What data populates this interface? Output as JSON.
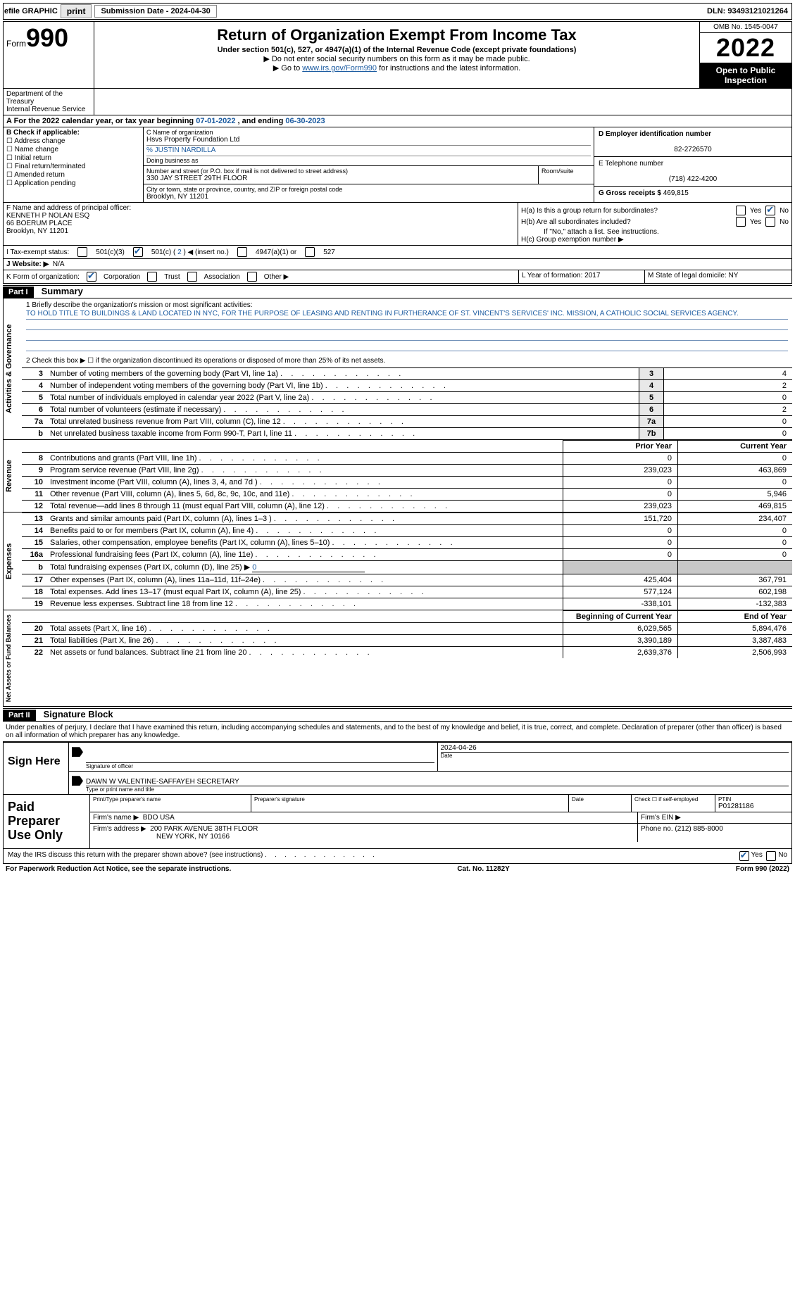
{
  "topbar": {
    "efile_label": "efile GRAPHIC",
    "print_btn": "print",
    "submission_label": "Submission Date - 2024-04-30",
    "dln_label": "DLN: 93493121021264"
  },
  "header": {
    "form_word": "Form",
    "form_number": "990",
    "dept": "Department of the Treasury\nInternal Revenue Service",
    "title": "Return of Organization Exempt From Income Tax",
    "subtitle": "Under section 501(c), 527, or 4947(a)(1) of the Internal Revenue Code (except private foundations)",
    "note1": "▶ Do not enter social security numbers on this form as it may be made public.",
    "note2_pre": "▶ Go to ",
    "note2_link": "www.irs.gov/Form990",
    "note2_post": " for instructions and the latest information.",
    "omb": "OMB No. 1545-0047",
    "year": "2022",
    "open": "Open to Public Inspection"
  },
  "A": {
    "line_pre": "A For the 2022 calendar year, or tax year beginning ",
    "begin": "07-01-2022",
    "mid": " , and ending ",
    "end": "06-30-2023"
  },
  "B": {
    "label": "B Check if applicable:",
    "opts": [
      "Address change",
      "Name change",
      "Initial return",
      "Final return/terminated",
      "Amended return",
      "Application pending"
    ]
  },
  "C": {
    "name_lbl": "C Name of organization",
    "name_val": "Hsvs Property Foundation Ltd",
    "care_lbl": "% JUSTIN NARDILLA",
    "dba_lbl": "Doing business as",
    "street_lbl": "Number and street (or P.O. box if mail is not delivered to street address)",
    "room_lbl": "Room/suite",
    "street_val": "330 JAY STREET 29TH FLOOR",
    "city_lbl": "City or town, state or province, country, and ZIP or foreign postal code",
    "city_val": "Brooklyn, NY  11201"
  },
  "D": {
    "lbl": "D Employer identification number",
    "val": "82-2726570"
  },
  "E": {
    "lbl": "E Telephone number",
    "val": "(718) 422-4200"
  },
  "G": {
    "lbl": "G Gross receipts $ ",
    "val": "469,815"
  },
  "F": {
    "lbl": "F  Name and address of principal officer:",
    "name": "KENNETH P NOLAN ESQ",
    "addr1": "66 BOERUM PLACE",
    "addr2": "Brooklyn, NY  11201"
  },
  "H": {
    "a": "H(a)  Is this a group return for subordinates?",
    "b": "H(b)  Are all subordinates included?",
    "b_note": "If \"No,\" attach a list. See instructions.",
    "c": "H(c)  Group exemption number ▶",
    "yes": "Yes",
    "no": "No"
  },
  "I": {
    "lbl": "I   Tax-exempt status:",
    "o1": "501(c)(3)",
    "o2_pre": "501(c) ( ",
    "o2_val": "2",
    "o2_post": " ) ◀ (insert no.)",
    "o3": "4947(a)(1) or",
    "o4": "527"
  },
  "J": {
    "lbl": "J   Website: ▶",
    "val": "N/A"
  },
  "K": {
    "lbl": "K Form of organization:",
    "o1": "Corporation",
    "o2": "Trust",
    "o3": "Association",
    "o4": "Other ▶"
  },
  "L": {
    "lbl": "L Year of formation: ",
    "val": "2017"
  },
  "M": {
    "lbl": "M State of legal domicile: ",
    "val": "NY"
  },
  "part1": {
    "tag": "Part I",
    "title": "Summary"
  },
  "mission": {
    "lbl": "1   Briefly describe the organization's mission or most significant activities:",
    "text": "TO HOLD TITLE TO BUILDINGS & LAND LOCATED IN NYC, FOR THE PURPOSE OF LEASING AND RENTING IN FURTHERANCE OF ST. VINCENT'S SERVICES' INC. MISSION, A CATHOLIC SOCIAL SERVICES AGENCY."
  },
  "line2": "2   Check this box ▶ ☐ if the organization discontinued its operations or disposed of more than 25% of its net assets.",
  "numrows": [
    {
      "n": "3",
      "t": "Number of voting members of the governing body (Part VI, line 1a)",
      "b": "3",
      "v": "4"
    },
    {
      "n": "4",
      "t": "Number of independent voting members of the governing body (Part VI, line 1b)",
      "b": "4",
      "v": "2"
    },
    {
      "n": "5",
      "t": "Total number of individuals employed in calendar year 2022 (Part V, line 2a)",
      "b": "5",
      "v": "0"
    },
    {
      "n": "6",
      "t": "Total number of volunteers (estimate if necessary)",
      "b": "6",
      "v": "2"
    },
    {
      "n": "7a",
      "t": "Total unrelated business revenue from Part VIII, column (C), line 12",
      "b": "7a",
      "v": "0"
    },
    {
      "n": "b",
      "t": "Net unrelated business taxable income from Form 990-T, Part I, line 11",
      "b": "7b",
      "v": "0"
    }
  ],
  "vtabs": {
    "ag": "Activities & Governance",
    "rev": "Revenue",
    "exp": "Expenses",
    "net": "Net Assets or Fund Balances"
  },
  "finhead": {
    "prior": "Prior Year",
    "current": "Current Year"
  },
  "rev": [
    {
      "n": "8",
      "t": "Contributions and grants (Part VIII, line 1h)",
      "p": "0",
      "c": "0"
    },
    {
      "n": "9",
      "t": "Program service revenue (Part VIII, line 2g)",
      "p": "239,023",
      "c": "463,869"
    },
    {
      "n": "10",
      "t": "Investment income (Part VIII, column (A), lines 3, 4, and 7d )",
      "p": "0",
      "c": "0"
    },
    {
      "n": "11",
      "t": "Other revenue (Part VIII, column (A), lines 5, 6d, 8c, 9c, 10c, and 11e)",
      "p": "0",
      "c": "5,946"
    },
    {
      "n": "12",
      "t": "Total revenue—add lines 8 through 11 (must equal Part VIII, column (A), line 12)",
      "p": "239,023",
      "c": "469,815"
    }
  ],
  "exp": [
    {
      "n": "13",
      "t": "Grants and similar amounts paid (Part IX, column (A), lines 1–3 )",
      "p": "151,720",
      "c": "234,407"
    },
    {
      "n": "14",
      "t": "Benefits paid to or for members (Part IX, column (A), line 4)",
      "p": "0",
      "c": "0"
    },
    {
      "n": "15",
      "t": "Salaries, other compensation, employee benefits (Part IX, column (A), lines 5–10)",
      "p": "0",
      "c": "0"
    },
    {
      "n": "16a",
      "t": "Professional fundraising fees (Part IX, column (A), line 11e)",
      "p": "0",
      "c": "0"
    }
  ],
  "exp16b": {
    "n": "b",
    "t_pre": "Total fundraising expenses (Part IX, column (D), line 25) ▶",
    "t_val": "0"
  },
  "exp2": [
    {
      "n": "17",
      "t": "Other expenses (Part IX, column (A), lines 11a–11d, 11f–24e)",
      "p": "425,404",
      "c": "367,791"
    },
    {
      "n": "18",
      "t": "Total expenses. Add lines 13–17 (must equal Part IX, column (A), line 25)",
      "p": "577,124",
      "c": "602,198"
    },
    {
      "n": "19",
      "t": "Revenue less expenses. Subtract line 18 from line 12",
      "p": "-338,101",
      "c": "-132,383"
    }
  ],
  "nethead": {
    "begin": "Beginning of Current Year",
    "end": "End of Year"
  },
  "net": [
    {
      "n": "20",
      "t": "Total assets (Part X, line 16)",
      "p": "6,029,565",
      "c": "5,894,476"
    },
    {
      "n": "21",
      "t": "Total liabilities (Part X, line 26)",
      "p": "3,390,189",
      "c": "3,387,483"
    },
    {
      "n": "22",
      "t": "Net assets or fund balances. Subtract line 21 from line 20",
      "p": "2,639,376",
      "c": "2,506,993"
    }
  ],
  "part2": {
    "tag": "Part II",
    "title": "Signature Block"
  },
  "sig": {
    "penalty": "Under penalties of perjury, I declare that I have examined this return, including accompanying schedules and statements, and to the best of my knowledge and belief, it is true, correct, and complete. Declaration of preparer (other than officer) is based on all information of which preparer has any knowledge.",
    "sign_here": "Sign Here",
    "sig_off_lbl": "Signature of officer",
    "date_lbl": "Date",
    "date_val": "2024-04-26",
    "name_lbl": "Type or print name and title",
    "name_val": "DAWN W VALENTINE-SAFFAYEH  SECRETARY"
  },
  "prep": {
    "label": "Paid Preparer Use Only",
    "print_lbl": "Print/Type preparer's name",
    "sig_lbl": "Preparer's signature",
    "date_lbl": "Date",
    "check_lbl": "Check ☐ if self-employed",
    "ptin_lbl": "PTIN",
    "ptin_val": "P01281186",
    "firm_lbl": "Firm's name    ▶",
    "firm_val": "BDO USA",
    "ein_lbl": "Firm's EIN ▶",
    "addr_lbl": "Firm's address ▶",
    "addr_val1": "200 PARK AVENUE 38TH FLOOR",
    "addr_val2": "NEW YORK, NY  10166",
    "phone_lbl": "Phone no. ",
    "phone_val": "(212) 885-8000"
  },
  "discuss": {
    "text": "May the IRS discuss this return with the preparer shown above? (see instructions)",
    "yes": "Yes",
    "no": "No"
  },
  "footer": {
    "left": "For Paperwork Reduction Act Notice, see the separate instructions.",
    "mid": "Cat. No. 11282Y",
    "right_pre": "Form ",
    "right_b": "990",
    "right_post": " (2022)"
  }
}
